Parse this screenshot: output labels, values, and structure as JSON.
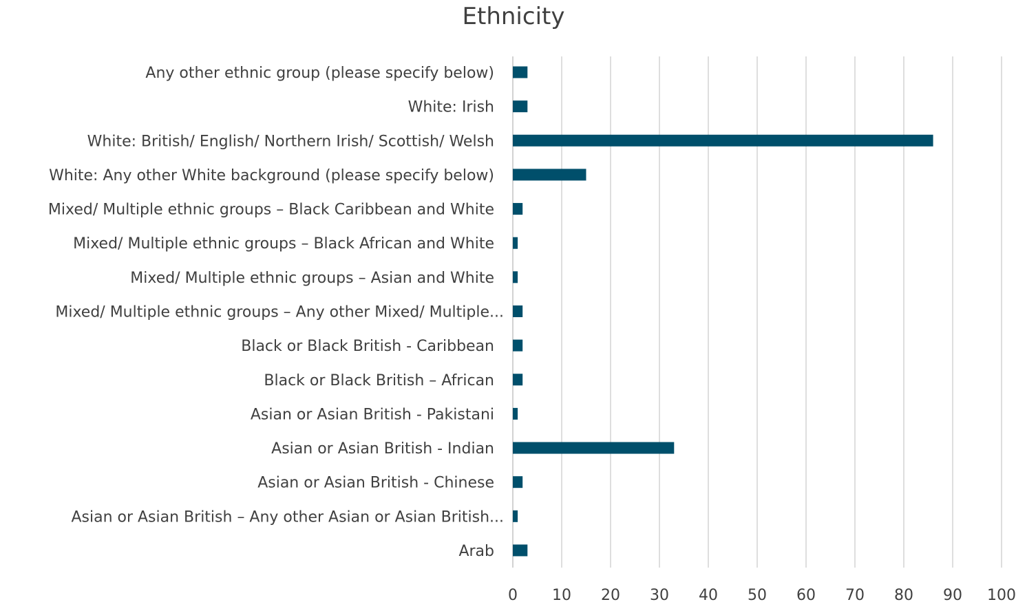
{
  "chart_data": {
    "type": "bar",
    "orientation": "horizontal",
    "title": "Ethnicity",
    "xlabel": "",
    "ylabel": "",
    "xlim": [
      0,
      100
    ],
    "x_ticks": [
      0,
      10,
      20,
      30,
      40,
      50,
      60,
      70,
      80,
      90,
      100
    ],
    "grid": "vertical",
    "legend": "none",
    "bar_color": "#004f6b",
    "categories": [
      "Any other ethnic group (please specify below)",
      "White: Irish",
      "White: British/ English/ Northern Irish/ Scottish/ Welsh",
      "White: Any other White background (please specify below)",
      "Mixed/ Multiple ethnic groups – Black Caribbean and White",
      "Mixed/ Multiple ethnic groups – Black African and White",
      "Mixed/ Multiple ethnic groups – Asian and White",
      "Mixed/ Multiple ethnic groups – Any other Mixed/ Multiple...",
      "Black or Black British - Caribbean",
      "Black or Black British – African",
      "Asian or Asian British - Pakistani",
      "Asian or Asian British - Indian",
      "Asian or Asian British - Chinese",
      "Asian or Asian British – Any other Asian or Asian British...",
      "Arab"
    ],
    "values": [
      3,
      3,
      86,
      15,
      2,
      1,
      1,
      2,
      2,
      2,
      1,
      33,
      2,
      1,
      3
    ]
  }
}
